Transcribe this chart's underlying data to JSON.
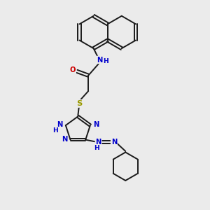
{
  "bg_color": "#ebebeb",
  "bond_color": "#1a1a1a",
  "N_color": "#0000cc",
  "O_color": "#cc0000",
  "S_color": "#999900",
  "line_width": 1.4,
  "font_size": 7.2,
  "fig_size": [
    3.0,
    3.0
  ],
  "dpi": 100,
  "xlim": [
    0,
    10
  ],
  "ylim": [
    0,
    10
  ]
}
